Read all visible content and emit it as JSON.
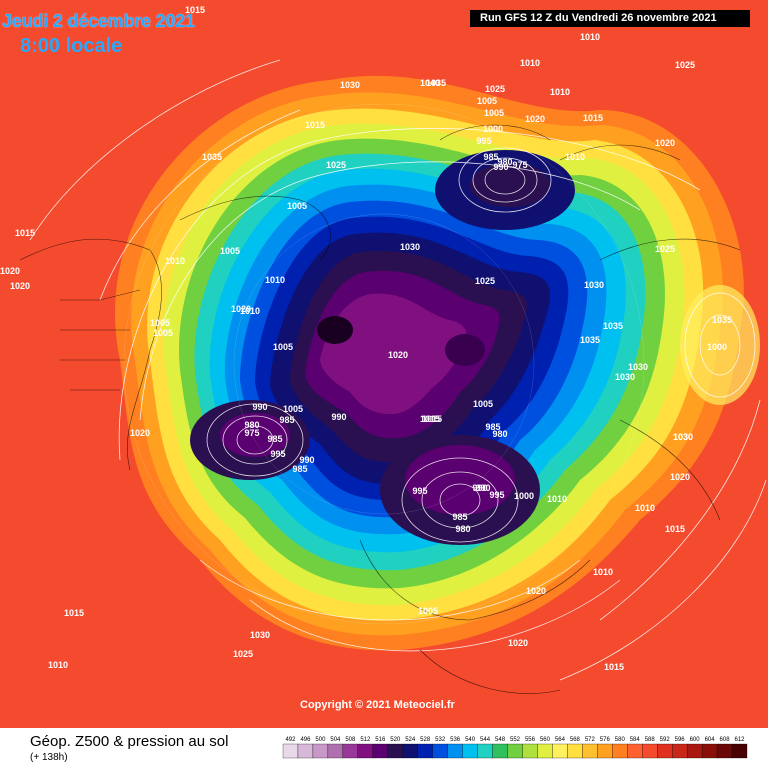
{
  "header": {
    "date": "Jeudi 2 décembre 2021",
    "time": "8:00 locale",
    "run": "Run GFS 12 Z du Vendredi 26 novembre 2021"
  },
  "copyright": "Copyright © 2021 Meteociel.fr",
  "footer": {
    "title": "Géop. Z500 & pression au sol",
    "subtitle": "(+ 138h)"
  },
  "colorbar": {
    "values": [
      "492",
      "496",
      "500",
      "504",
      "508",
      "512",
      "516",
      "520",
      "524",
      "528",
      "532",
      "536",
      "540",
      "544",
      "548",
      "552",
      "556",
      "560",
      "564",
      "568",
      "572",
      "576",
      "580",
      "584",
      "588",
      "592",
      "596",
      "600",
      "604",
      "608",
      "612"
    ],
    "colors": [
      "#e8d8e8",
      "#d8b8d8",
      "#c898c8",
      "#b070b0",
      "#983898",
      "#801080",
      "#5a0070",
      "#2a1050",
      "#101070",
      "#0020b0",
      "#0050e0",
      "#0090f0",
      "#00c0f0",
      "#20d0c0",
      "#30c060",
      "#70d040",
      "#b0e040",
      "#e0f040",
      "#fff060",
      "#ffe040",
      "#ffc030",
      "#ffa020",
      "#ff8020",
      "#ff6030",
      "#f44a2e",
      "#e03020",
      "#c82818",
      "#a81810",
      "#881008",
      "#680808",
      "#480000"
    ]
  },
  "pressure_labels": [
    "1015",
    "1030",
    "1015",
    "1010",
    "1010",
    "1025",
    "1005",
    "1035",
    "1010",
    "1025",
    "1005",
    "1025",
    "1020",
    "1015",
    "1015",
    "1020",
    "1010",
    "1020",
    "1035",
    "1020",
    "1040",
    "1010",
    "1030",
    "1000",
    "995",
    "985",
    "980",
    "990",
    "1025",
    "975",
    "1005",
    "1010",
    "1005",
    "1005",
    "1035",
    "1030",
    "1035",
    "1025",
    "1030",
    "1030",
    "1035",
    "1005",
    "1000",
    "1010",
    "1020",
    "1005",
    "1020",
    "1015",
    "1020",
    "1005",
    "990",
    "985",
    "990",
    "980",
    "975",
    "985",
    "995",
    "990",
    "985",
    "1015",
    "1005",
    "1030",
    "985",
    "980",
    "990",
    "1030",
    "1020",
    "995",
    "985",
    "980",
    "995",
    "990",
    "1000",
    "1010",
    "1010",
    "1015",
    "1005",
    "1020",
    "1020",
    "1010",
    "1015",
    "1030",
    "1025",
    "1015",
    "1010"
  ]
}
